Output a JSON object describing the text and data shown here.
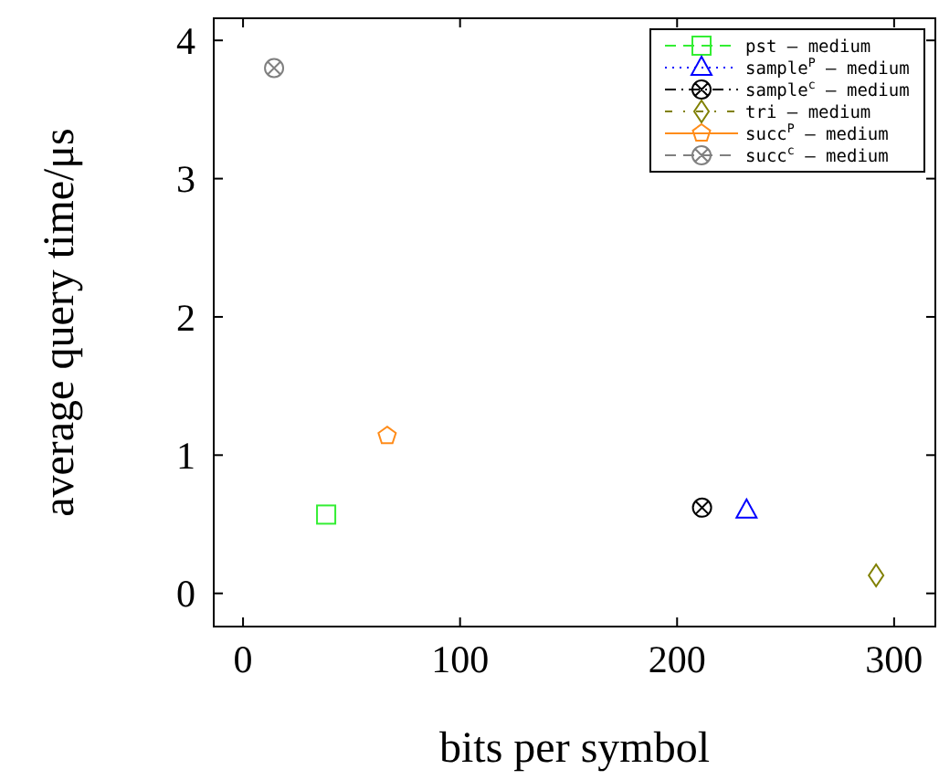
{
  "chart_data": {
    "type": "scatter",
    "xlabel": "bits per symbol",
    "ylabel": "average query time/μs",
    "xlim": [
      -13.5,
      319
    ],
    "ylim": [
      -0.24,
      4.16
    ],
    "xticks": [
      0,
      100,
      200,
      300
    ],
    "yticks": [
      0,
      1,
      2,
      3,
      4
    ],
    "grid": false,
    "legend": "top right",
    "series": [
      {
        "name": "pst — medium",
        "color": "#33ee33",
        "marker": "square",
        "line_style": "dashed",
        "x": [
          38.3
        ],
        "values": [
          0.57
        ]
      },
      {
        "name": "sample$^{P}$ — medium",
        "color": "#0000ff",
        "marker": "triangle",
        "line_style": "dotted",
        "x": [
          232
        ],
        "values": [
          0.6
        ]
      },
      {
        "name": "sample$^{c}$ — medium",
        "color": "#000000",
        "marker": "cross",
        "line_style": "dashdot",
        "x": [
          211.5
        ],
        "values": [
          0.62
        ]
      },
      {
        "name": "tri — medium",
        "color": "#808000",
        "marker": "diamond",
        "line_style": "dashdotdot",
        "x": [
          291.7
        ],
        "values": [
          0.13
        ]
      },
      {
        "name": "succ$^{P}$ — medium",
        "color": "#ff8c1a",
        "line_style": "solid",
        "x": [
          66.4
        ],
        "values": [
          1.14
        ]
      },
      {
        "name": "succ$^{c}$ — medium",
        "color": "#808080",
        "marker": "cross",
        "line_style": "dashed",
        "x": [
          14.3
        ],
        "values": [
          3.8
        ]
      }
    ]
  }
}
